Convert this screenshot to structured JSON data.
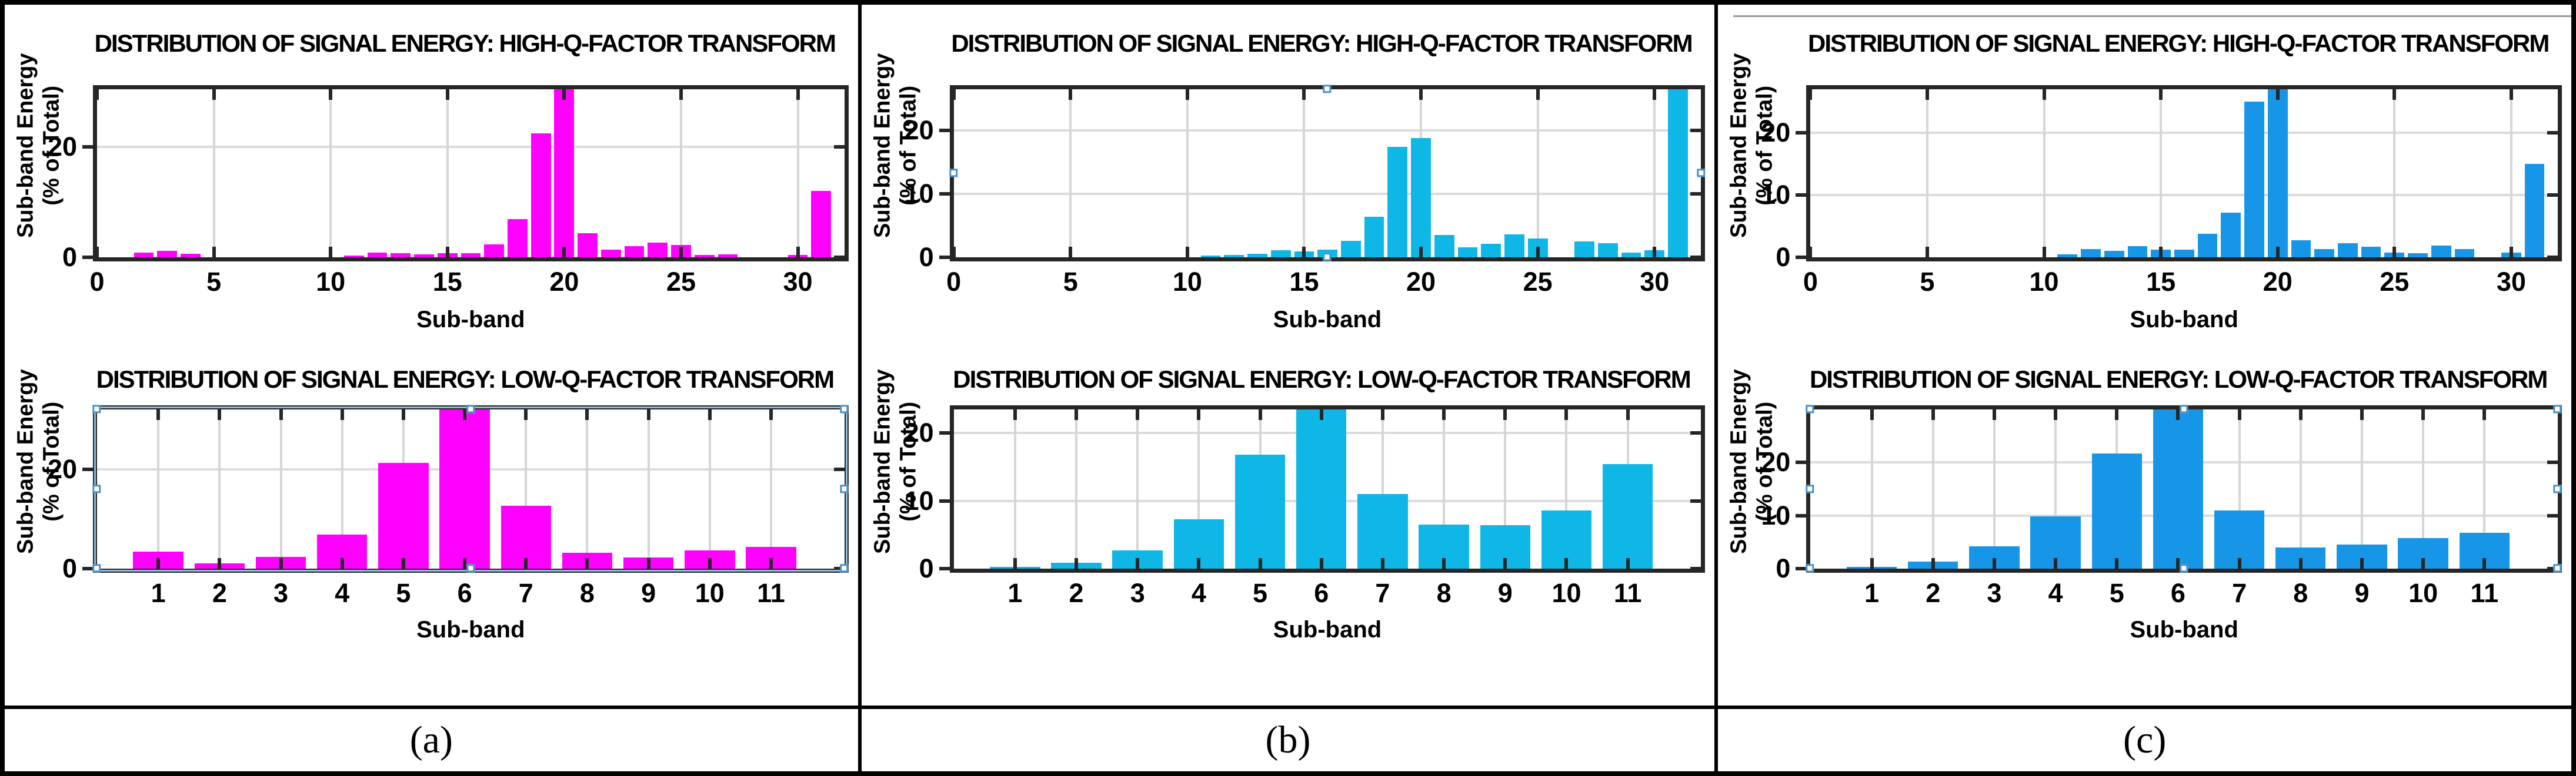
{
  "captions": [
    "(a)",
    "(b)",
    "(c)"
  ],
  "artifact": {
    "panel": "c",
    "type": "horizontal-scan-line",
    "color": "#9a9a9a"
  },
  "selection_style": {
    "handle_fill": "#ffffff",
    "handle_border": "#4A90C4",
    "outline": "#8FBBDD"
  },
  "chart_data": [
    {
      "panel": "a",
      "position": "top",
      "type": "bar",
      "title": "DISTRIBUTION OF SIGNAL ENERGY: HIGH-Q-FACTOR TRANSFORM",
      "xlabel": "Sub-band",
      "ylabel_line1": "Sub-band Energy",
      "ylabel_line2": "(% of Total)",
      "color": "#FF00FF",
      "grid": true,
      "grid_x_mode": "ticks",
      "xlim": [
        0,
        32
      ],
      "ylim": [
        0,
        30.5
      ],
      "xticks": [
        0,
        5,
        10,
        15,
        20,
        25,
        30
      ],
      "yticks": [
        0,
        20
      ],
      "bar_width_frac": 0.85,
      "x": [
        1,
        2,
        3,
        4,
        5,
        6,
        7,
        8,
        9,
        10,
        11,
        12,
        13,
        14,
        15,
        16,
        17,
        18,
        19,
        20,
        21,
        22,
        23,
        24,
        25,
        26,
        27,
        28,
        29,
        30,
        31
      ],
      "values": [
        0,
        0.9,
        1.2,
        0.6,
        0,
        0,
        0,
        0,
        0,
        0,
        0.3,
        0.9,
        0.7,
        0.5,
        0.7,
        0.8,
        2.3,
        6.9,
        22.5,
        32,
        4.4,
        1.4,
        2.0,
        2.7,
        2.2,
        0.4,
        0.5,
        0,
        0,
        0.4,
        12.0
      ],
      "selected": false,
      "selection_outline": false,
      "handles": "none"
    },
    {
      "panel": "a",
      "position": "bottom",
      "type": "bar",
      "title": "DISTRIBUTION OF SIGNAL ENERGY: LOW-Q-FACTOR TRANSFORM",
      "xlabel": "Sub-band",
      "ylabel_line1": "Sub-band Energy",
      "ylabel_line2": "(% of Total)",
      "color": "#FF00FF",
      "grid": true,
      "grid_x_mode": "categories",
      "xlim": [
        0,
        12.2
      ],
      "ylim": [
        0,
        32
      ],
      "xticks": [
        1,
        2,
        3,
        4,
        5,
        6,
        7,
        8,
        9,
        10,
        11
      ],
      "yticks": [
        0,
        20
      ],
      "bar_width_frac": 0.82,
      "x": [
        1,
        2,
        3,
        4,
        5,
        6,
        7,
        8,
        9,
        10,
        11
      ],
      "values": [
        3.4,
        1.1,
        2.4,
        6.8,
        21.3,
        33,
        12.6,
        3.2,
        2.2,
        3.7,
        4.4
      ],
      "selected": true,
      "selection_outline": true,
      "handles": "all"
    },
    {
      "panel": "b",
      "position": "top",
      "type": "bar",
      "title": "DISTRIBUTION OF SIGNAL ENERGY: HIGH-Q-FACTOR TRANSFORM",
      "xlabel": "Sub-band",
      "ylabel_line1": "Sub-band Energy",
      "ylabel_line2": "(% of Total)",
      "color": "#0FB7E6",
      "grid": true,
      "grid_x_mode": "ticks",
      "xlim": [
        0,
        32
      ],
      "ylim": [
        0,
        26.5
      ],
      "xticks": [
        0,
        5,
        10,
        15,
        20,
        25,
        30
      ],
      "yticks": [
        0,
        10,
        20
      ],
      "bar_width_frac": 0.85,
      "x": [
        1,
        2,
        3,
        4,
        5,
        6,
        7,
        8,
        9,
        10,
        11,
        12,
        13,
        14,
        15,
        16,
        17,
        18,
        19,
        20,
        21,
        22,
        23,
        24,
        25,
        26,
        27,
        28,
        29,
        30,
        31
      ],
      "values": [
        0,
        0,
        0,
        0,
        0,
        0,
        0,
        0,
        0,
        0,
        0.3,
        0.4,
        0.6,
        1.1,
        0.9,
        1.2,
        2.6,
        6.4,
        17.4,
        18.8,
        3.5,
        1.6,
        2.1,
        3.6,
        3.0,
        0,
        2.5,
        2.2,
        0.7,
        1.1,
        27.5
      ],
      "selected": true,
      "selection_outline": false,
      "handles": "mids"
    },
    {
      "panel": "b",
      "position": "bottom",
      "type": "bar",
      "title": "DISTRIBUTION OF SIGNAL ENERGY: LOW-Q-FACTOR TRANSFORM",
      "xlabel": "Sub-band",
      "ylabel_line1": "Sub-band Energy",
      "ylabel_line2": "(% of Total)",
      "color": "#0FB7E6",
      "grid": true,
      "grid_x_mode": "categories",
      "xlim": [
        0,
        12.2
      ],
      "ylim": [
        0,
        23.5
      ],
      "xticks": [
        1,
        2,
        3,
        4,
        5,
        6,
        7,
        8,
        9,
        10,
        11
      ],
      "yticks": [
        0,
        10,
        20
      ],
      "bar_width_frac": 0.82,
      "x": [
        1,
        2,
        3,
        4,
        5,
        6,
        7,
        8,
        9,
        10,
        11
      ],
      "values": [
        0.3,
        0.9,
        2.7,
        7.3,
        16.8,
        24.5,
        11.0,
        6.5,
        6.4,
        8.6,
        15.4
      ],
      "selected": false,
      "selection_outline": false,
      "handles": "none"
    },
    {
      "panel": "c",
      "position": "top",
      "type": "bar",
      "title": "DISTRIBUTION OF SIGNAL ENERGY: HIGH-Q-FACTOR TRANSFORM",
      "xlabel": "Sub-band",
      "ylabel_line1": "Sub-band Energy",
      "ylabel_line2": "(% of Total)",
      "color": "#1796E8",
      "grid": true,
      "grid_x_mode": "ticks",
      "xlim": [
        0,
        32
      ],
      "ylim": [
        0,
        27
      ],
      "xticks": [
        0,
        5,
        10,
        15,
        20,
        25,
        30
      ],
      "yticks": [
        0,
        10,
        20
      ],
      "bar_width_frac": 0.85,
      "x": [
        1,
        2,
        3,
        4,
        5,
        6,
        7,
        8,
        9,
        10,
        11,
        12,
        13,
        14,
        15,
        16,
        17,
        18,
        19,
        20,
        21,
        22,
        23,
        24,
        25,
        26,
        27,
        28,
        29,
        30,
        31
      ],
      "values": [
        0,
        0,
        0,
        0,
        0,
        0,
        0,
        0,
        0,
        0,
        0.5,
        1.3,
        1.0,
        1.8,
        1.2,
        1.2,
        3.8,
        7.2,
        25.0,
        30.0,
        2.7,
        1.3,
        2.3,
        1.7,
        0.8,
        0.7,
        1.9,
        1.3,
        0,
        0.8,
        15.0
      ],
      "selected": false,
      "selection_outline": false,
      "handles": "none"
    },
    {
      "panel": "c",
      "position": "bottom",
      "type": "bar",
      "title": "DISTRIBUTION OF SIGNAL ENERGY: LOW-Q-FACTOR TRANSFORM",
      "xlabel": "Sub-band",
      "ylabel_line1": "Sub-band Energy",
      "ylabel_line2": "(% of Total)",
      "color": "#1796E8",
      "grid": true,
      "grid_x_mode": "categories",
      "xlim": [
        0,
        12.2
      ],
      "ylim": [
        0,
        30
      ],
      "xticks": [
        1,
        2,
        3,
        4,
        5,
        6,
        7,
        8,
        9,
        10,
        11
      ],
      "yticks": [
        0,
        10,
        20
      ],
      "bar_width_frac": 0.82,
      "x": [
        1,
        2,
        3,
        4,
        5,
        6,
        7,
        8,
        9,
        10,
        11
      ],
      "values": [
        0.3,
        1.3,
        4.2,
        9.8,
        21.7,
        31,
        11.0,
        4.0,
        4.5,
        5.8,
        6.8
      ],
      "selected": true,
      "selection_outline": false,
      "handles": "all"
    }
  ]
}
